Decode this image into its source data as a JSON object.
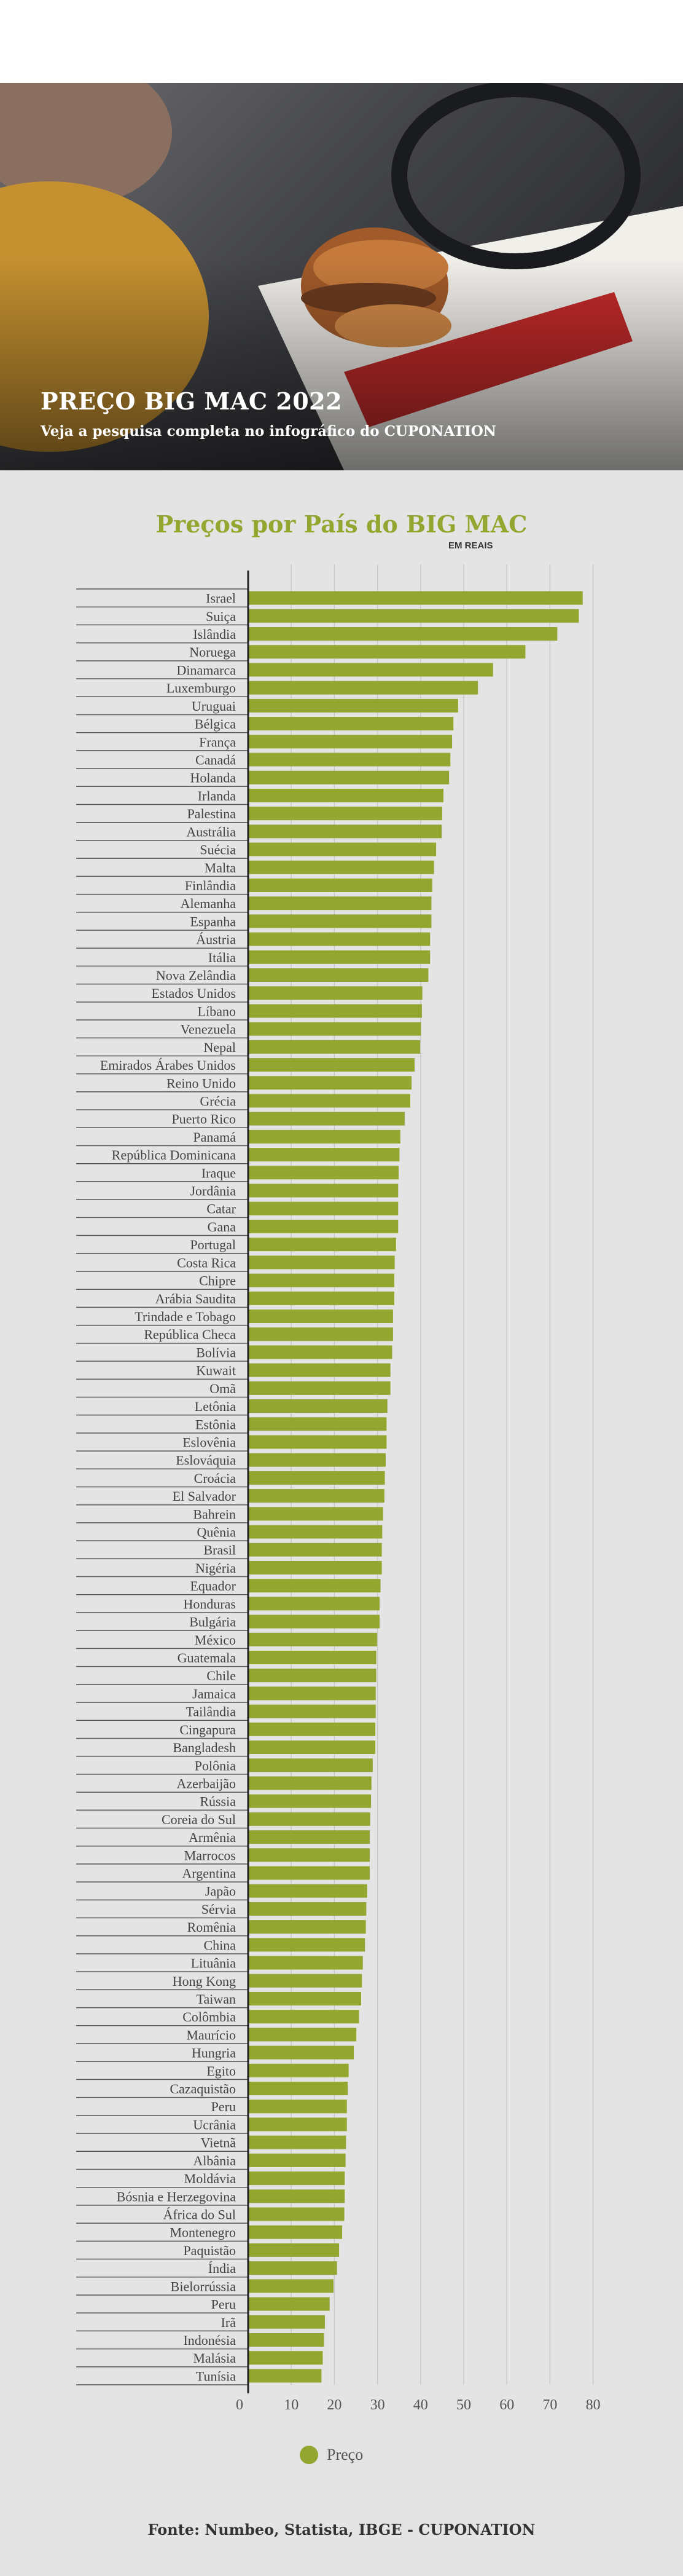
{
  "hero": {
    "title": "PREÇO BIG MAC 2022",
    "subtitle": "Veja a pesquisa completa no infográfico do CUPONATION"
  },
  "colors": {
    "bar": "#93a62f",
    "title": "#93a62f",
    "grid": "#c8c8c8",
    "axis": "#222222"
  },
  "chart_data": {
    "type": "bar",
    "orientation": "horizontal",
    "title": "Preços por País do BIG MAC",
    "unit_label": "EM REAIS",
    "xlim": [
      0,
      80
    ],
    "x_ticks": [
      0,
      10,
      20,
      30,
      40,
      50,
      60,
      70,
      80
    ],
    "grid": true,
    "legend": {
      "position": "bottom-center",
      "label": "Preço"
    },
    "categories": [
      "Israel",
      "Suiça",
      "Islândia",
      "Noruega",
      "Dinamarca",
      "Luxemburgo",
      "Uruguai",
      "Bélgica",
      "França",
      "Canadá",
      "Holanda",
      "Irlanda",
      "Palestina",
      "Austrália",
      "Suécia",
      "Malta",
      "Finlândia",
      "Alemanha",
      "Espanha",
      "Áustria",
      "Itália",
      "Nova Zelândia",
      "Estados Unidos",
      "Líbano",
      "Venezuela",
      "Nepal",
      "Emirados Árabes Unidos",
      "Reino Unido",
      "Grécia",
      "Puerto Rico",
      "Panamá",
      "República Dominicana",
      "Iraque",
      "Jordânia",
      "Catar",
      "Gana",
      "Portugal",
      "Costa Rica",
      "Chipre",
      "Arábia Saudita",
      "Trindade e Tobago",
      "República Checa",
      "Bolívia",
      "Kuwait",
      "Omã",
      "Letônia",
      "Estônia",
      "Eslovênia",
      "Eslováquia",
      "Croácia",
      "El Salvador",
      "Bahrein",
      "Quênia",
      "Brasil",
      "Nigéria",
      "Equador",
      "Honduras",
      "Bulgária",
      "México",
      "Guatemala",
      "Chile",
      "Jamaica",
      "Tailândia",
      "Cingapura",
      "Bangladesh",
      "Polônia",
      "Azerbaijão",
      "Rússia",
      "Coreia do Sul",
      "Armênia",
      "Marrocos",
      "Argentina",
      "Japão",
      "Sérvia",
      "Romênia",
      "China",
      "Lituânia",
      "Hong Kong",
      "Taiwan",
      "Colômbia",
      "Maurício",
      "Hungria",
      "Egito",
      "Cazaquistão",
      "Peru",
      "Ucrânia",
      "Vietnã",
      "Albânia",
      "Moldávia",
      "Bósnia e Herzegovina",
      "África do Sul",
      "Montenegro",
      "Paquistão",
      "Índia",
      "Bielorrússia",
      "Peru",
      "Irã",
      "Indonésia",
      "Malásia",
      "Tunísia"
    ],
    "values": [
      77.6,
      76.7,
      71.7,
      64.3,
      56.8,
      53.3,
      48.7,
      47.6,
      47.3,
      46.9,
      46.6,
      45.3,
      45.0,
      44.9,
      43.6,
      43.1,
      42.7,
      42.5,
      42.5,
      42.2,
      42.2,
      41.8,
      40.4,
      40.3,
      40.1,
      39.9,
      38.6,
      37.9,
      37.6,
      36.3,
      35.3,
      35.1,
      34.9,
      34.8,
      34.8,
      34.8,
      34.3,
      34.0,
      33.9,
      33.9,
      33.6,
      33.6,
      33.4,
      33.0,
      33.0,
      32.3,
      32.1,
      32.1,
      31.9,
      31.7,
      31.6,
      31.3,
      31.1,
      31.0,
      31.0,
      30.7,
      30.5,
      30.5,
      29.9,
      29.7,
      29.7,
      29.6,
      29.6,
      29.5,
      29.5,
      28.9,
      28.6,
      28.5,
      28.3,
      28.2,
      28.2,
      28.2,
      27.6,
      27.4,
      27.3,
      27.1,
      26.6,
      26.4,
      26.2,
      25.7,
      25.1,
      24.5,
      23.3,
      23.1,
      22.9,
      22.9,
      22.7,
      22.6,
      22.4,
      22.4,
      22.3,
      21.8,
      21.1,
      20.6,
      19.8,
      18.9,
      17.8,
      17.6,
      17.3,
      17.0
    ]
  },
  "footer": {
    "source": "Fonte: Numbeo, Statista, IBGE - CUPONATION"
  }
}
